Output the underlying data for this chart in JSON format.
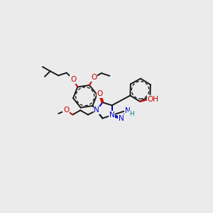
{
  "bg": "#ebebeb",
  "C": "#1a1a1a",
  "N": "#0000cc",
  "O": "#cc0000",
  "H": "#008080",
  "lw": 1.4,
  "fs": 7.5
}
